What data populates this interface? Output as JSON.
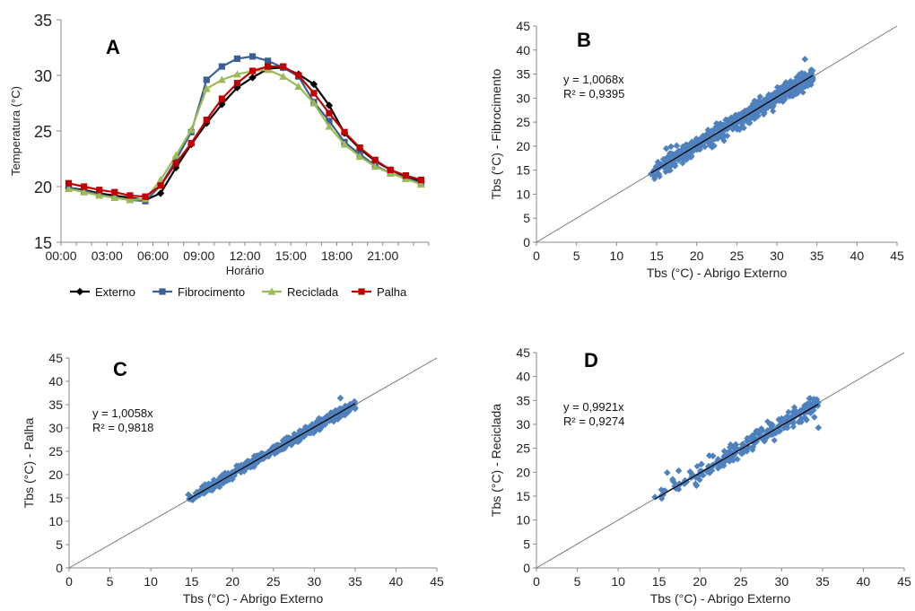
{
  "chart_data": [
    {
      "id": "A",
      "type": "line",
      "panel_label": "A",
      "xlabel": "Horário",
      "ylabel": "Temperatura (°C)",
      "ylim": [
        15,
        35
      ],
      "yticks": [
        "15",
        "20",
        "25",
        "30",
        "35"
      ],
      "x": [
        "00:00",
        "01:00",
        "02:00",
        "03:00",
        "04:00",
        "05:00",
        "06:00",
        "07:00",
        "08:00",
        "09:00",
        "10:00",
        "11:00",
        "12:00",
        "13:00",
        "14:00",
        "15:00",
        "16:00",
        "17:00",
        "18:00",
        "19:00",
        "20:00",
        "21:00",
        "22:00",
        "23:00"
      ],
      "xtick_labels": [
        "00:00",
        "03:00",
        "06:00",
        "09:00",
        "12:00",
        "15:00",
        "18:00",
        "21:00"
      ],
      "legend_position": "bottom",
      "series": [
        {
          "name": "Externo",
          "color": "#000000",
          "marker": "diamond",
          "values": [
            19.9,
            19.7,
            19.4,
            19.2,
            19.0,
            18.8,
            19.4,
            21.7,
            23.8,
            25.7,
            27.4,
            28.9,
            29.8,
            30.6,
            30.7,
            30.1,
            29.2,
            27.3,
            24.8,
            23.4,
            22.3,
            21.5,
            20.9,
            20.4
          ]
        },
        {
          "name": "Fibrocimento",
          "color": "#3A5F95",
          "marker": "square",
          "values": [
            19.9,
            19.6,
            19.3,
            19.0,
            18.8,
            18.7,
            20.1,
            22.4,
            24.9,
            29.6,
            30.8,
            31.5,
            31.7,
            31.3,
            30.7,
            29.9,
            27.6,
            25.9,
            24.0,
            22.9,
            21.9,
            21.2,
            20.8,
            20.3
          ]
        },
        {
          "name": "Reciclada",
          "color": "#9BBB59",
          "marker": "triangle",
          "values": [
            19.8,
            19.5,
            19.2,
            19.0,
            18.8,
            18.9,
            20.6,
            22.8,
            25.1,
            28.8,
            29.6,
            30.1,
            30.4,
            30.5,
            29.9,
            29.0,
            27.5,
            25.4,
            23.8,
            22.7,
            21.8,
            21.2,
            20.7,
            20.2
          ]
        },
        {
          "name": "Palha",
          "color": "#C00000",
          "marker": "square",
          "values": [
            20.3,
            20.0,
            19.7,
            19.5,
            19.2,
            19.1,
            20.1,
            22.1,
            23.9,
            26.0,
            27.9,
            29.3,
            30.4,
            30.8,
            30.8,
            30.0,
            28.4,
            26.6,
            24.9,
            23.5,
            22.4,
            21.5,
            21.0,
            20.6
          ]
        }
      ]
    },
    {
      "id": "B",
      "type": "scatter",
      "panel_label": "B",
      "xlabel": "Tbs (°C) - Abrigo Externo",
      "ylabel": "Tbs (°C) - Fibrocimento",
      "xlim": [
        0,
        45
      ],
      "ylim": [
        0,
        45
      ],
      "ticks": [
        "0",
        "5",
        "10",
        "15",
        "20",
        "25",
        "30",
        "35",
        "40",
        "45"
      ],
      "equation": "y = 1,0068x",
      "r2": "R² = 0,9395",
      "slope": 1.0068,
      "x_range": [
        14.3,
        34.5
      ],
      "spread": 1.3,
      "point_color": "#4F81BD",
      "points": [
        [
          14.3,
          14.2
        ],
        [
          15.4,
          15.6
        ],
        [
          16.2,
          19.5
        ],
        [
          16.8,
          19.9
        ],
        [
          17.5,
          20.1
        ],
        [
          18.0,
          17.8
        ],
        [
          18.6,
          19.2
        ],
        [
          19.3,
          20.1
        ],
        [
          20.1,
          21.0
        ],
        [
          20.8,
          20.2
        ],
        [
          21.5,
          22.9
        ],
        [
          22.0,
          21.3
        ],
        [
          22.6,
          23.4
        ],
        [
          23.3,
          22.4
        ],
        [
          23.9,
          24.6
        ],
        [
          24.6,
          24.2
        ],
        [
          25.2,
          26.4
        ],
        [
          25.8,
          25.1
        ],
        [
          26.5,
          27.7
        ],
        [
          27.1,
          26.2
        ],
        [
          27.8,
          28.8
        ],
        [
          28.4,
          27.5
        ],
        [
          29.0,
          30.7
        ],
        [
          29.7,
          29.1
        ],
        [
          30.3,
          31.5
        ],
        [
          31.0,
          29.8
        ],
        [
          31.6,
          33.1
        ],
        [
          32.3,
          31.0
        ],
        [
          32.9,
          34.5
        ],
        [
          33.5,
          38.1
        ],
        [
          34.0,
          33.2
        ],
        [
          34.3,
          35.7
        ]
      ]
    },
    {
      "id": "C",
      "type": "scatter",
      "panel_label": "C",
      "xlabel": "Tbs (°C) - Abrigo Externo",
      "ylabel": "Tbs  (°C) - Palha",
      "xlim": [
        0,
        45
      ],
      "ylim": [
        0,
        45
      ],
      "ticks": [
        "0",
        "5",
        "10",
        "15",
        "20",
        "25",
        "30",
        "35",
        "40",
        "45"
      ],
      "equation": "y = 1,0058x",
      "r2": "R² = 0,9818",
      "slope": 1.0058,
      "x_range": [
        14.6,
        35.0
      ],
      "spread": 0.7,
      "point_color": "#4F81BD",
      "points": [
        [
          14.6,
          15.7
        ],
        [
          15.5,
          16.0
        ],
        [
          16.3,
          17.4
        ],
        [
          17.0,
          17.9
        ],
        [
          17.8,
          17.3
        ],
        [
          18.5,
          19.0
        ],
        [
          19.2,
          19.9
        ],
        [
          20.0,
          19.6
        ],
        [
          20.7,
          21.3
        ],
        [
          21.4,
          21.2
        ],
        [
          22.1,
          22.7
        ],
        [
          22.9,
          22.4
        ],
        [
          23.6,
          24.3
        ],
        [
          24.3,
          24.0
        ],
        [
          25.0,
          25.6
        ],
        [
          25.7,
          25.3
        ],
        [
          26.4,
          27.1
        ],
        [
          27.1,
          26.6
        ],
        [
          27.8,
          28.4
        ],
        [
          28.5,
          28.0
        ],
        [
          29.2,
          29.9
        ],
        [
          29.9,
          29.3
        ],
        [
          30.6,
          31.3
        ],
        [
          31.3,
          30.7
        ],
        [
          32.0,
          32.6
        ],
        [
          32.7,
          32.3
        ],
        [
          33.2,
          36.4
        ],
        [
          33.8,
          33.9
        ],
        [
          34.4,
          35.1
        ],
        [
          35.0,
          34.3
        ]
      ]
    },
    {
      "id": "D",
      "type": "scatter",
      "panel_label": "D",
      "xlabel": "Tbs (°C) - Abrigo Externo",
      "ylabel": "Tbs (°C) - Reciclada",
      "xlim": [
        0,
        45
      ],
      "ylim": [
        0,
        45
      ],
      "ticks": [
        "0",
        "5",
        "10",
        "15",
        "20",
        "25",
        "30",
        "35",
        "40",
        "45"
      ],
      "equation": "y = 0,9921x",
      "r2": "R² = 0,9274",
      "slope": 0.9921,
      "x_range": [
        14.5,
        34.5
      ],
      "spread": 1.4,
      "point_color": "#4F81BD",
      "points": [
        [
          14.5,
          14.8
        ],
        [
          15.3,
          15.1
        ],
        [
          16.0,
          19.9
        ],
        [
          16.7,
          18.2
        ],
        [
          17.4,
          20.3
        ],
        [
          18.1,
          17.6
        ],
        [
          18.8,
          20.1
        ],
        [
          19.5,
          18.9
        ],
        [
          20.2,
          21.7
        ],
        [
          20.9,
          20.1
        ],
        [
          21.6,
          23.4
        ],
        [
          22.3,
          21.5
        ],
        [
          23.0,
          24.4
        ],
        [
          23.7,
          22.6
        ],
        [
          24.4,
          25.8
        ],
        [
          25.1,
          23.9
        ],
        [
          25.8,
          27.1
        ],
        [
          26.5,
          25.3
        ],
        [
          27.2,
          28.6
        ],
        [
          27.9,
          26.5
        ],
        [
          28.6,
          30.0
        ],
        [
          29.3,
          28.2
        ],
        [
          30.0,
          31.2
        ],
        [
          30.7,
          29.3
        ],
        [
          31.4,
          32.6
        ],
        [
          32.1,
          30.5
        ],
        [
          32.8,
          33.9
        ],
        [
          33.4,
          35.4
        ],
        [
          34.0,
          31.5
        ],
        [
          34.5,
          29.3
        ]
      ]
    }
  ]
}
